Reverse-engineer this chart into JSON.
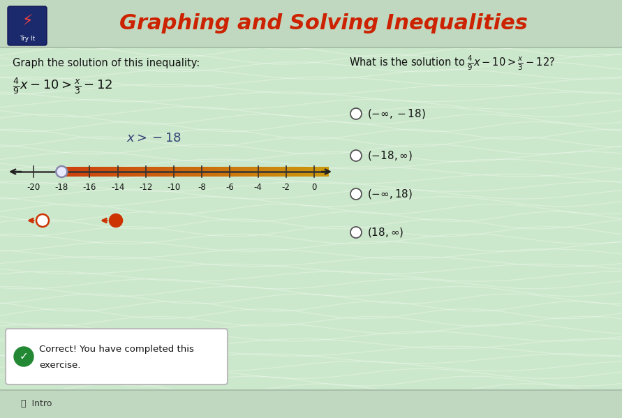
{
  "title": "Graphing and Solving Inequalities",
  "title_color": "#cc2200",
  "bg_color_top": "#d8ead8",
  "bg_color": "#cce8cc",
  "header_bg": "#c8dfc8",
  "inequality_left": "$\\frac{4}{9}x - 10 > \\frac{x}{3} - 12$",
  "solution_text": "$x > -18$",
  "solution_text_color": "#334477",
  "question_text": "What is the solution to $\\frac{4}{9}x - 10 > \\frac{x}{3} - 12$?",
  "graph_label": "Graph the solution of this inequality:",
  "tick_labels": [
    -20,
    -18,
    -16,
    -14,
    -12,
    -10,
    -8,
    -6,
    -4,
    -2,
    0
  ],
  "solution_point": -18,
  "number_line_vmin": -21.5,
  "number_line_vmax": 1.0,
  "options": [
    "$(-\\infty, -18)$",
    "$(-18, \\infty)$",
    "$(-\\infty, 18)$",
    "$(18, \\infty)$"
  ],
  "correct_option_index": 1,
  "check_color": "#228833",
  "arrow_color": "#cc3300",
  "number_line_bar_color": "#cc4400",
  "number_line_bar_color2": "#ddaa44",
  "icon_bg": "#1a2a6c",
  "open_circle_face": "#e8e8ff",
  "open_circle_edge": "#8888aa"
}
